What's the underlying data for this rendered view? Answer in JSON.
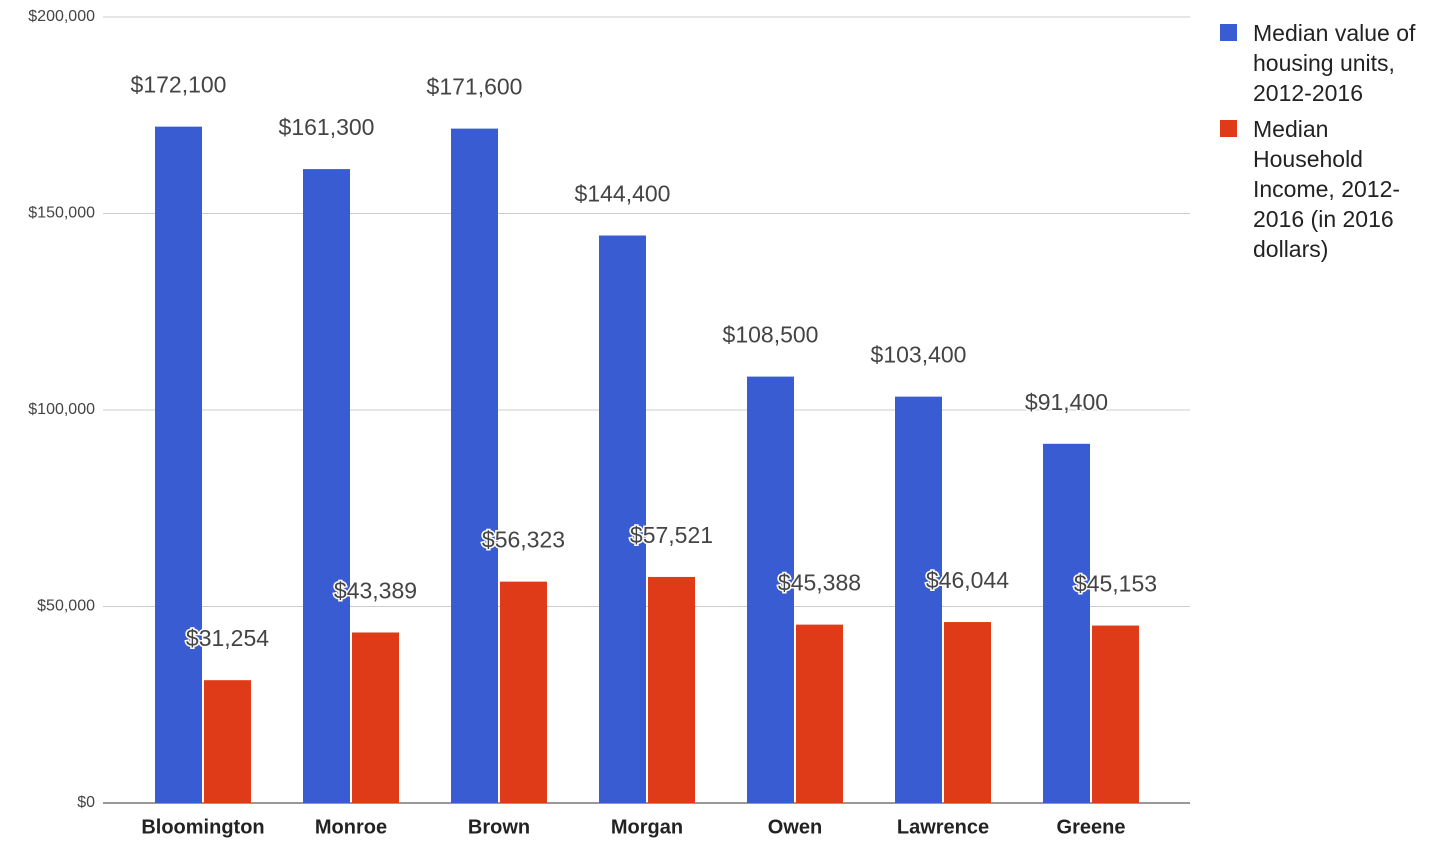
{
  "chart_data": {
    "type": "bar",
    "categories": [
      "Bloomington",
      "Monroe",
      "Brown",
      "Morgan",
      "Owen",
      "Lawrence",
      "Greene"
    ],
    "series": [
      {
        "name": "Median value of housing units, 2012-2016",
        "color": "#3a5cd3",
        "values": [
          172100,
          161300,
          171600,
          144400,
          108500,
          103400,
          91400
        ],
        "value_labels": [
          "$172,100",
          "$161,300",
          "$171,600",
          "$144,400",
          "$108,500",
          "$103,400",
          "$91,400"
        ]
      },
      {
        "name": "Median Household Income, 2012-2016 (in 2016 dollars)",
        "color": "#e03b18",
        "values": [
          31254,
          43389,
          56323,
          57521,
          45388,
          46044,
          45153
        ],
        "value_labels": [
          "$31,254",
          "$43,389",
          "$56,323",
          "$57,521",
          "$45,388",
          "$46,044",
          "$45,153"
        ]
      }
    ],
    "ylim": [
      0,
      200000
    ],
    "yticks": [
      {
        "value": 0,
        "label": "$0"
      },
      {
        "value": 50000,
        "label": "$50,000"
      },
      {
        "value": 100000,
        "label": "$100,000"
      },
      {
        "value": 150000,
        "label": "$150,000"
      },
      {
        "value": 200000,
        "label": "$200,000"
      }
    ],
    "grid": true,
    "legend": "right"
  }
}
